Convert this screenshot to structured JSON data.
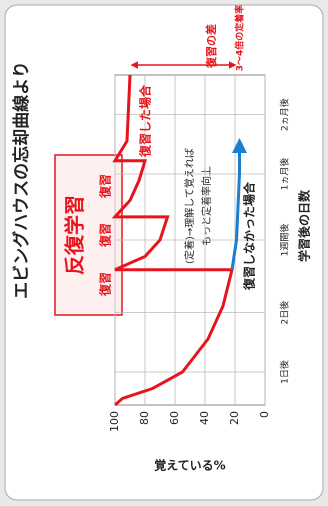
{
  "chart_data": {
    "type": "line",
    "title": "エビングハウスの忘却曲線より",
    "x_label": "学習後の日数",
    "y_label": "覚えている%",
    "xlim": [
      0,
      100
    ],
    "xticks": [
      {
        "value": 10,
        "label": "1日後"
      },
      {
        "value": 28,
        "label": "2日後"
      },
      {
        "value": 50,
        "label": "1週間後"
      },
      {
        "value": 70,
        "label": "1ヵ月後"
      },
      {
        "value": 88,
        "label": "2ヵ月後"
      }
    ],
    "ylim": [
      0,
      100
    ],
    "yticks": [
      0,
      20,
      40,
      60,
      80,
      100
    ],
    "grid": true,
    "series": [
      {
        "name": "復習した場合",
        "color": "#e8141b",
        "x": [
          0,
          2,
          5,
          10,
          20,
          30,
          41,
          41,
          45,
          50,
          57,
          57,
          62,
          68,
          74,
          74,
          80,
          100
        ],
        "values": [
          100,
          95,
          75,
          55,
          38,
          28,
          22,
          100,
          80,
          70,
          65,
          100,
          90,
          84,
          80,
          100,
          92,
          90
        ]
      },
      {
        "name": "復習しなかった場合",
        "color": "#1a7fd0",
        "x": [
          41,
          50,
          60,
          70,
          80
        ],
        "values": [
          22,
          19,
          18,
          17,
          17
        ]
      }
    ],
    "annotations": [
      "反復学習",
      "復習",
      "復習",
      "復習",
      "(定着)→理解して覚えれば",
      "もっと定着率向上",
      "3〜4倍の定着率",
      "復習の差"
    ]
  }
}
